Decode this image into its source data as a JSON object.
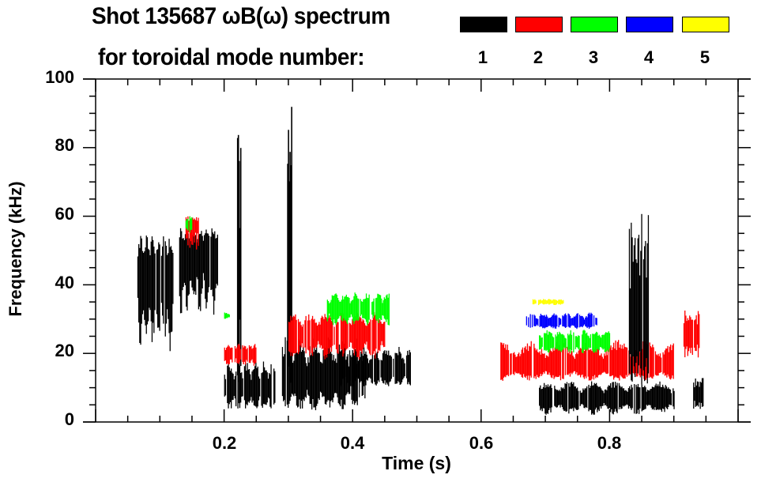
{
  "chart_data": {
    "type": "heatmap",
    "title": "Shot 135687 ωB(ω) spectrum",
    "subtitle": "for toroidal mode number:",
    "xlabel": "Time (s)",
    "ylabel": "Frequency (kHz)",
    "xlim": [
      0,
      1.0
    ],
    "ylim": [
      0,
      100
    ],
    "x_ticks": [
      "0.2",
      "0.4",
      "0.6",
      "0.8"
    ],
    "x_tick_values": [
      0.2,
      0.4,
      0.6,
      0.8
    ],
    "y_ticks": [
      "0",
      "20",
      "40",
      "60",
      "80",
      "100"
    ],
    "y_tick_values": [
      0,
      20,
      40,
      60,
      80,
      100
    ],
    "grid": false,
    "legend_placement": "top-right",
    "legend": [
      {
        "label": "1",
        "mode": 1,
        "color": "#000000"
      },
      {
        "label": "2",
        "mode": 2,
        "color": "#ff0000"
      },
      {
        "label": "3",
        "mode": 3,
        "color": "#00ff00"
      },
      {
        "label": "4",
        "mode": 4,
        "color": "#0000ff"
      },
      {
        "label": "5",
        "mode": 5,
        "color": "#ffff00"
      }
    ],
    "features": [
      {
        "name": "early-burst",
        "mode": 1,
        "t": [
          0.065,
          0.12
        ],
        "f": [
          20,
          55
        ],
        "center_f": 44
      },
      {
        "name": "early-burst-2",
        "mode": 1,
        "t": [
          0.13,
          0.19
        ],
        "f": [
          30,
          57
        ],
        "center_f": 50
      },
      {
        "name": "early-chirp-n2",
        "mode": 2,
        "t": [
          0.14,
          0.16
        ],
        "f": [
          50,
          60
        ],
        "center_f": 58
      },
      {
        "name": "early-n3",
        "mode": 3,
        "t": [
          0.14,
          0.15
        ],
        "f": [
          55,
          60
        ],
        "center_f": 58
      },
      {
        "name": "sawtooth-spike-1",
        "mode": 1,
        "t": [
          0.22,
          0.225
        ],
        "f": [
          5,
          90
        ],
        "center_f": 40
      },
      {
        "name": "sawtooth-spike-2",
        "mode": 1,
        "t": [
          0.298,
          0.305
        ],
        "f": [
          5,
          100
        ],
        "center_f": 40
      },
      {
        "name": "n1-low-band-a",
        "mode": 1,
        "t": [
          0.2,
          0.28
        ],
        "f": [
          3,
          18
        ],
        "center_f": 10
      },
      {
        "name": "n1-low-band-b",
        "mode": 1,
        "t": [
          0.29,
          0.42
        ],
        "f": [
          3,
          25
        ],
        "center_f": 12
      },
      {
        "name": "n1-low-band-c",
        "mode": 1,
        "t": [
          0.38,
          0.49
        ],
        "f": [
          10,
          22
        ],
        "center_f": 15
      },
      {
        "name": "n2-chirp-down-a",
        "mode": 2,
        "t": [
          0.2,
          0.25
        ],
        "f": [
          16,
          23
        ],
        "center_f": 20
      },
      {
        "name": "n2-chirp-down-b",
        "mode": 2,
        "t": [
          0.3,
          0.45
        ],
        "f": [
          18,
          32
        ],
        "center_f": 26
      },
      {
        "name": "n3-scattered-a",
        "mode": 3,
        "t": [
          0.2,
          0.21
        ],
        "f": [
          30,
          32
        ],
        "center_f": 31
      },
      {
        "name": "n3-scattered-b",
        "mode": 3,
        "t": [
          0.36,
          0.46
        ],
        "f": [
          28,
          38
        ],
        "center_f": 33
      },
      {
        "name": "late-n1-band",
        "mode": 1,
        "t": [
          0.69,
          0.9
        ],
        "f": [
          2,
          12
        ],
        "center_f": 7
      },
      {
        "name": "late-n2-band",
        "mode": 2,
        "t": [
          0.63,
          0.9
        ],
        "f": [
          12,
          24
        ],
        "center_f": 16
      },
      {
        "name": "late-n3-band",
        "mode": 3,
        "t": [
          0.69,
          0.8
        ],
        "f": [
          20,
          27
        ],
        "center_f": 23
      },
      {
        "name": "late-n4-band",
        "mode": 4,
        "t": [
          0.67,
          0.78
        ],
        "f": [
          27,
          32
        ],
        "center_f": 29
      },
      {
        "name": "late-n5-dots",
        "mode": 5,
        "t": [
          0.68,
          0.73
        ],
        "f": [
          34,
          36
        ],
        "center_f": 35
      },
      {
        "name": "late-n1-spike",
        "mode": 1,
        "t": [
          0.83,
          0.86
        ],
        "f": [
          10,
          68
        ],
        "center_f": 25
      },
      {
        "name": "end-n2-burst",
        "mode": 2,
        "t": [
          0.915,
          0.94
        ],
        "f": [
          18,
          33
        ],
        "center_f": 26
      },
      {
        "name": "end-n1-burst",
        "mode": 1,
        "t": [
          0.93,
          0.945
        ],
        "f": [
          3,
          14
        ],
        "center_f": 8
      }
    ]
  }
}
